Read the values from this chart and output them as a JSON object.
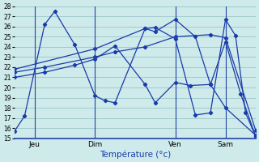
{
  "xlabel": "Température (°c)",
  "bg_color": "#ceeaea",
  "line_color": "#1a3aaa",
  "grid_color": "#90bfbf",
  "ylim": [
    15,
    28
  ],
  "xlim": [
    0,
    24
  ],
  "day_ticks": [
    2,
    8,
    16,
    21
  ],
  "day_labels": [
    "Jeu",
    "Dim",
    "Ven",
    "Sam"
  ],
  "vlines": [
    2,
    8,
    16,
    21
  ],
  "lines": [
    {
      "x": [
        0,
        1,
        3,
        4,
        6,
        8,
        9,
        10,
        13,
        14,
        16,
        18,
        19.5,
        21,
        22,
        23,
        24
      ],
      "y": [
        15.7,
        17.2,
        26.2,
        27.5,
        24.2,
        19.2,
        18.7,
        18.5,
        25.8,
        25.9,
        24.8,
        17.3,
        17.5,
        26.7,
        25.1,
        17.5,
        15.2
      ]
    },
    {
      "x": [
        0,
        3,
        6,
        8,
        10,
        13,
        14,
        16,
        17.5,
        19.5,
        21,
        22.5,
        24
      ],
      "y": [
        21.0,
        21.5,
        22.2,
        22.8,
        24.1,
        20.3,
        18.5,
        20.5,
        20.2,
        20.3,
        24.5,
        19.4,
        15.2
      ]
    },
    {
      "x": [
        0,
        3,
        8,
        10,
        13,
        16,
        19.5,
        21,
        24
      ],
      "y": [
        21.5,
        22.0,
        23.0,
        23.5,
        24.0,
        25.0,
        25.2,
        24.9,
        15.8
      ]
    },
    {
      "x": [
        0,
        8,
        13,
        14,
        16,
        18,
        19.5,
        21,
        24
      ],
      "y": [
        21.8,
        23.8,
        25.8,
        25.5,
        26.7,
        25.0,
        20.3,
        18.0,
        15.3
      ]
    }
  ]
}
